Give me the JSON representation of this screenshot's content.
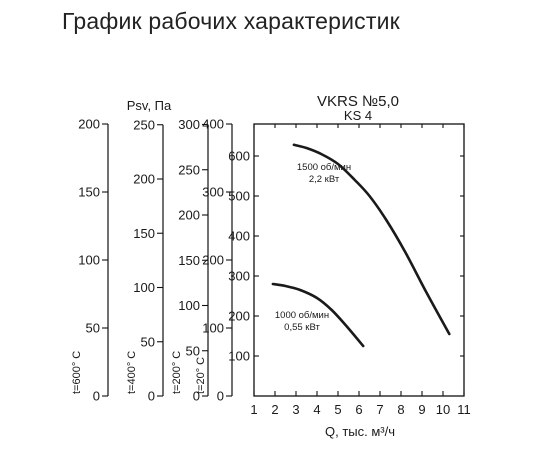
{
  "page": {
    "title": "График рабочих характеристик"
  },
  "chart_data": {
    "type": "line",
    "title": "VKRS №5,0",
    "subtitle": "KS 4",
    "xlabel": "Q, тыс. м³/ч",
    "ylabel": "Psv, Па",
    "xlim": [
      1,
      11
    ],
    "ylim": [
      0,
      680
    ],
    "x_ticks": [
      1,
      2,
      3,
      4,
      5,
      6,
      7,
      8,
      9,
      10,
      11
    ],
    "y_ticks": [
      100,
      200,
      300,
      400,
      500,
      600
    ],
    "grid": false,
    "series": [
      {
        "name": "1500 об/мин",
        "label_lines": [
          "1500 об/мин",
          "2,2 кВт"
        ],
        "x": [
          2.9,
          3.5,
          4.2,
          5.0,
          5.8,
          6.5,
          7.3,
          8.2,
          9.2,
          10.3
        ],
        "y": [
          628,
          620,
          605,
          580,
          540,
          500,
          440,
          360,
          260,
          155
        ]
      },
      {
        "name": "1000 об/мин",
        "label_lines": [
          "1000 об/мин",
          "0,55 кВт"
        ],
        "x": [
          1.9,
          2.5,
          3.2,
          4.0,
          4.7,
          5.4,
          6.2
        ],
        "y": [
          280,
          275,
          265,
          245,
          215,
          175,
          125
        ]
      }
    ],
    "temperature_scales": [
      {
        "label": "t=600° C",
        "ticks": [
          0,
          50,
          100,
          150,
          200
        ]
      },
      {
        "label": "t=400° C",
        "ticks": [
          0,
          50,
          100,
          150,
          200,
          250
        ]
      },
      {
        "label": "t=200° C",
        "ticks": [
          0,
          50,
          100,
          150,
          200,
          250,
          300
        ]
      },
      {
        "label": "t=20° C",
        "ticks": [
          0,
          100,
          200,
          300,
          400
        ]
      }
    ]
  }
}
